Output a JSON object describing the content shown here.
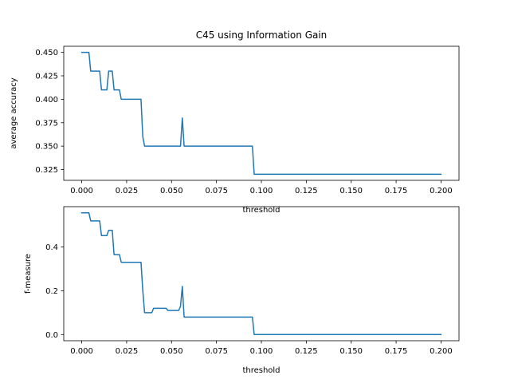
{
  "figure": {
    "title": "C45 using Information Gain",
    "line_color": "#1f77b4"
  },
  "chart_data": [
    {
      "type": "line",
      "title": "C45 using Information Gain",
      "xlabel": "threshold",
      "ylabel": "average accuracy",
      "xlim": [
        -0.01,
        0.21
      ],
      "ylim": [
        0.3135,
        0.4565
      ],
      "xticks": [
        0.0,
        0.025,
        0.05,
        0.075,
        0.1,
        0.125,
        0.15,
        0.175,
        0.2
      ],
      "xtick_labels": [
        "0.000",
        "0.025",
        "0.050",
        "0.075",
        "0.100",
        "0.125",
        "0.150",
        "0.175",
        "0.200"
      ],
      "yticks": [
        0.325,
        0.35,
        0.375,
        0.4,
        0.425,
        0.45
      ],
      "ytick_labels": [
        "0.325",
        "0.350",
        "0.375",
        "0.400",
        "0.425",
        "0.450"
      ],
      "grid": false,
      "series": [
        {
          "color": "#1f77b4",
          "x": [
            0.0,
            0.004,
            0.005,
            0.01,
            0.011,
            0.014,
            0.015,
            0.017,
            0.018,
            0.021,
            0.022,
            0.033,
            0.034,
            0.035,
            0.055,
            0.056,
            0.057,
            0.095,
            0.096,
            0.2
          ],
          "y": [
            0.45,
            0.45,
            0.43,
            0.43,
            0.41,
            0.41,
            0.43,
            0.43,
            0.41,
            0.41,
            0.4,
            0.4,
            0.36,
            0.35,
            0.35,
            0.38,
            0.35,
            0.35,
            0.32,
            0.32
          ]
        }
      ]
    },
    {
      "type": "line",
      "title": "",
      "xlabel": "threshold",
      "ylabel": "f-measure",
      "xlim": [
        -0.01,
        0.21
      ],
      "ylim": [
        -0.028,
        0.584
      ],
      "xticks": [
        0.0,
        0.025,
        0.05,
        0.075,
        0.1,
        0.125,
        0.15,
        0.175,
        0.2
      ],
      "xtick_labels": [
        "0.000",
        "0.025",
        "0.050",
        "0.075",
        "0.100",
        "0.125",
        "0.150",
        "0.175",
        "0.200"
      ],
      "yticks": [
        0.0,
        0.2,
        0.4
      ],
      "ytick_labels": [
        "0.0",
        "0.2",
        "0.4"
      ],
      "grid": false,
      "series": [
        {
          "color": "#1f77b4",
          "x": [
            0.0,
            0.004,
            0.005,
            0.01,
            0.011,
            0.014,
            0.015,
            0.017,
            0.018,
            0.021,
            0.022,
            0.033,
            0.034,
            0.035,
            0.039,
            0.04,
            0.047,
            0.048,
            0.054,
            0.055,
            0.056,
            0.057,
            0.095,
            0.096,
            0.2
          ],
          "y": [
            0.556,
            0.556,
            0.519,
            0.519,
            0.452,
            0.452,
            0.476,
            0.476,
            0.365,
            0.365,
            0.33,
            0.33,
            0.2,
            0.1,
            0.1,
            0.12,
            0.12,
            0.11,
            0.11,
            0.13,
            0.22,
            0.08,
            0.08,
            0.0,
            0.0
          ]
        }
      ]
    }
  ]
}
